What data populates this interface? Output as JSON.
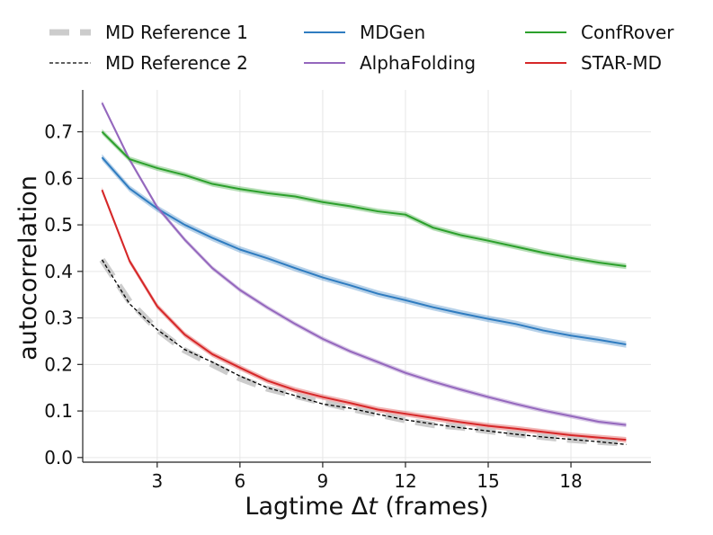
{
  "chart_data": {
    "type": "line",
    "title": "",
    "xlabel": "Lagtime Δt (frames)",
    "xlabel_parts": [
      "Lagtime Δ",
      "t",
      " (frames)"
    ],
    "ylabel": "autocorrelation",
    "xlim": [
      0.3,
      20.9
    ],
    "ylim": [
      -0.01,
      0.79
    ],
    "xticks": [
      3,
      6,
      9,
      12,
      15,
      18
    ],
    "xtick_labels": [
      "3",
      "6",
      "9",
      "12",
      "15",
      "18"
    ],
    "yticks": [
      0.0,
      0.1,
      0.2,
      0.3,
      0.4,
      0.5,
      0.6,
      0.7
    ],
    "ytick_labels": [
      "0.0",
      "0.1",
      "0.2",
      "0.3",
      "0.4",
      "0.5",
      "0.6",
      "0.7"
    ],
    "grid": true,
    "legend_position": "top",
    "x": [
      1,
      2,
      3,
      4,
      5,
      6,
      7,
      8,
      9,
      10,
      11,
      12,
      13,
      14,
      15,
      16,
      17,
      18,
      19,
      20
    ],
    "series": [
      {
        "name": "MD Reference 1",
        "style": "thick-dashed",
        "color": "#cccccc",
        "values": [
          0.425,
          0.335,
          0.275,
          0.23,
          0.2,
          0.17,
          0.148,
          0.133,
          0.118,
          0.105,
          0.093,
          0.08,
          0.07,
          0.065,
          0.057,
          0.05,
          0.044,
          0.038,
          0.034,
          0.03
        ]
      },
      {
        "name": "MD Reference 2",
        "style": "thin-dashed",
        "color": "#000000",
        "values": [
          0.425,
          0.33,
          0.275,
          0.232,
          0.205,
          0.175,
          0.15,
          0.133,
          0.115,
          0.106,
          0.093,
          0.081,
          0.072,
          0.064,
          0.057,
          0.05,
          0.044,
          0.039,
          0.034,
          0.028
        ]
      },
      {
        "name": "MDGen",
        "style": "solid",
        "color": "#2f7cc0",
        "band": 0.007,
        "values": [
          0.645,
          0.578,
          0.535,
          0.5,
          0.472,
          0.447,
          0.428,
          0.407,
          0.387,
          0.37,
          0.352,
          0.338,
          0.323,
          0.31,
          0.298,
          0.287,
          0.273,
          0.262,
          0.253,
          0.243
        ]
      },
      {
        "name": "AlphaFolding",
        "style": "solid",
        "color": "#9467bd",
        "band": 0.005,
        "values": [
          0.762,
          0.64,
          0.538,
          0.468,
          0.407,
          0.36,
          0.322,
          0.287,
          0.255,
          0.228,
          0.205,
          0.182,
          0.163,
          0.146,
          0.13,
          0.115,
          0.101,
          0.089,
          0.077,
          0.07
        ]
      },
      {
        "name": "ConfRover",
        "style": "solid",
        "color": "#2ca02c",
        "band": 0.006,
        "values": [
          0.7,
          0.641,
          0.622,
          0.607,
          0.588,
          0.577,
          0.568,
          0.561,
          0.549,
          0.54,
          0.529,
          0.522,
          0.494,
          0.478,
          0.466,
          0.453,
          0.44,
          0.429,
          0.419,
          0.411
        ]
      },
      {
        "name": "STAR-MD",
        "style": "solid",
        "color": "#d62728",
        "band": 0.006,
        "values": [
          0.575,
          0.422,
          0.325,
          0.264,
          0.222,
          0.193,
          0.165,
          0.145,
          0.13,
          0.117,
          0.103,
          0.094,
          0.085,
          0.076,
          0.068,
          0.062,
          0.055,
          0.048,
          0.043,
          0.038
        ]
      }
    ],
    "legend": [
      {
        "label": "MD Reference 1",
        "series": 0
      },
      {
        "label": "MD Reference 2",
        "series": 1
      },
      {
        "label": "MDGen",
        "series": 2
      },
      {
        "label": "AlphaFolding",
        "series": 3
      },
      {
        "label": "ConfRover",
        "series": 4
      },
      {
        "label": "STAR-MD",
        "series": 5
      }
    ]
  }
}
